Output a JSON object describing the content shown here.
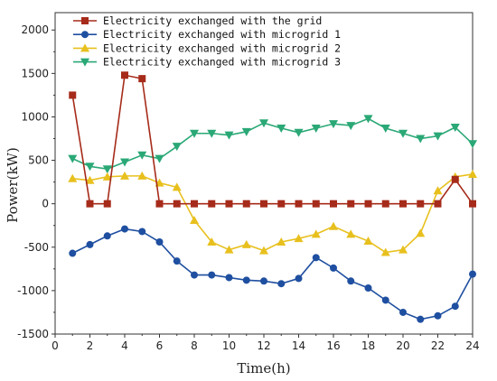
{
  "chart_data": {
    "type": "line",
    "xlabel": "Time(h)",
    "ylabel": "Power(kW)",
    "xlim": [
      0,
      24
    ],
    "ylim": [
      -1500,
      2200
    ],
    "xticks": [
      0,
      2,
      4,
      6,
      8,
      10,
      12,
      14,
      16,
      18,
      20,
      22,
      24
    ],
    "yticks": [
      -1500,
      -1000,
      -500,
      0,
      500,
      1000,
      1500,
      2000
    ],
    "grid": false,
    "legend_position": "top-left",
    "x": [
      1,
      2,
      3,
      4,
      5,
      6,
      7,
      8,
      9,
      10,
      11,
      12,
      13,
      14,
      15,
      16,
      17,
      18,
      19,
      20,
      21,
      22,
      23,
      24
    ],
    "series": [
      {
        "name": "Electricity exchanged with the grid",
        "color": "#a62b1a",
        "marker": "square",
        "values": [
          1250,
          0,
          0,
          1480,
          1440,
          0,
          0,
          0,
          0,
          0,
          0,
          0,
          0,
          0,
          0,
          0,
          0,
          0,
          0,
          0,
          0,
          0,
          280,
          0
        ]
      },
      {
        "name": "Electricity exchanged with microgrid 1",
        "color": "#1f4fa0",
        "marker": "circle",
        "values": [
          -570,
          -470,
          -370,
          -290,
          -320,
          -440,
          -660,
          -820,
          -820,
          -850,
          -880,
          -890,
          -920,
          -860,
          -620,
          -740,
          -890,
          -970,
          -1110,
          -1250,
          -1330,
          -1290,
          -1180,
          -810
        ]
      },
      {
        "name": "Electricity exchanged with microgrid 2",
        "color": "#e8c01e",
        "marker": "triangle-up",
        "values": [
          290,
          270,
          310,
          320,
          320,
          240,
          190,
          -190,
          -440,
          -530,
          -470,
          -540,
          -440,
          -400,
          -350,
          -260,
          -350,
          -430,
          -560,
          -530,
          -340,
          150,
          310,
          340
        ]
      },
      {
        "name": "Electricity exchanged with microgrid 3",
        "color": "#2aa876",
        "marker": "triangle-down",
        "values": [
          520,
          430,
          400,
          480,
          560,
          520,
          660,
          810,
          810,
          790,
          830,
          930,
          870,
          820,
          870,
          920,
          900,
          980,
          870,
          810,
          750,
          780,
          880,
          690
        ]
      }
    ]
  }
}
